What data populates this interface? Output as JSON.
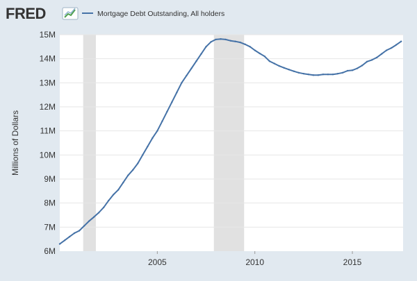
{
  "header": {
    "logo_text": "FRED",
    "legend_label": "Mortgage Debt Outstanding, All holders"
  },
  "colors": {
    "background": "#e1e9f0",
    "plot_background": "#ffffff",
    "series_line": "#4572a7",
    "recession_band": "#e1e1e1",
    "grid": "#e6e6e6",
    "text": "#333333"
  },
  "icons": [
    "fred-logo-chart-icon",
    "legend-line-icon"
  ],
  "chart_data": {
    "type": "line",
    "ylabel": "Millions of Dollars",
    "xlabel": "",
    "ylim": [
      6,
      15
    ],
    "xlim": [
      2000.0,
      2017.6
    ],
    "y_ticks": [
      {
        "value": 6,
        "label": "6M"
      },
      {
        "value": 7,
        "label": "7M"
      },
      {
        "value": 8,
        "label": "8M"
      },
      {
        "value": 9,
        "label": "9M"
      },
      {
        "value": 10,
        "label": "10M"
      },
      {
        "value": 11,
        "label": "11M"
      },
      {
        "value": 12,
        "label": "12M"
      },
      {
        "value": 13,
        "label": "13M"
      },
      {
        "value": 14,
        "label": "14M"
      },
      {
        "value": 15,
        "label": "15M"
      }
    ],
    "x_ticks": [
      {
        "value": 2005,
        "label": "2005"
      },
      {
        "value": 2010,
        "label": "2010"
      },
      {
        "value": 2015,
        "label": "2015"
      }
    ],
    "grid": true,
    "recessions": [
      [
        2001.2,
        2001.85
      ],
      [
        2007.9,
        2009.45
      ]
    ],
    "series": [
      {
        "name": "Mortgage Debt Outstanding, All holders",
        "x": [
          2000.0,
          2000.25,
          2000.5,
          2000.75,
          2001.0,
          2001.25,
          2001.5,
          2001.75,
          2002.0,
          2002.25,
          2002.5,
          2002.75,
          2003.0,
          2003.25,
          2003.5,
          2003.75,
          2004.0,
          2004.25,
          2004.5,
          2004.75,
          2005.0,
          2005.25,
          2005.5,
          2005.75,
          2006.0,
          2006.25,
          2006.5,
          2006.75,
          2007.0,
          2007.25,
          2007.5,
          2007.75,
          2008.0,
          2008.25,
          2008.5,
          2008.75,
          2009.0,
          2009.25,
          2009.5,
          2009.75,
          2010.0,
          2010.25,
          2010.5,
          2010.75,
          2011.0,
          2011.25,
          2011.5,
          2011.75,
          2012.0,
          2012.25,
          2012.5,
          2012.75,
          2013.0,
          2013.25,
          2013.5,
          2013.75,
          2014.0,
          2014.25,
          2014.5,
          2014.75,
          2015.0,
          2015.25,
          2015.5,
          2015.75,
          2016.0,
          2016.25,
          2016.5,
          2016.75,
          2017.0,
          2017.25,
          2017.5
        ],
        "values": [
          6.3,
          6.45,
          6.6,
          6.75,
          6.85,
          7.05,
          7.25,
          7.42,
          7.6,
          7.82,
          8.1,
          8.35,
          8.55,
          8.85,
          9.15,
          9.38,
          9.65,
          10.0,
          10.35,
          10.7,
          11.0,
          11.4,
          11.8,
          12.2,
          12.6,
          13.0,
          13.3,
          13.6,
          13.9,
          14.2,
          14.5,
          14.7,
          14.8,
          14.82,
          14.8,
          14.75,
          14.72,
          14.68,
          14.6,
          14.5,
          14.35,
          14.22,
          14.1,
          13.9,
          13.8,
          13.7,
          13.62,
          13.55,
          13.48,
          13.42,
          13.38,
          13.35,
          13.32,
          13.32,
          13.35,
          13.35,
          13.35,
          13.38,
          13.42,
          13.5,
          13.52,
          13.6,
          13.72,
          13.88,
          13.95,
          14.05,
          14.2,
          14.35,
          14.45,
          14.58,
          14.72
        ]
      }
    ]
  }
}
